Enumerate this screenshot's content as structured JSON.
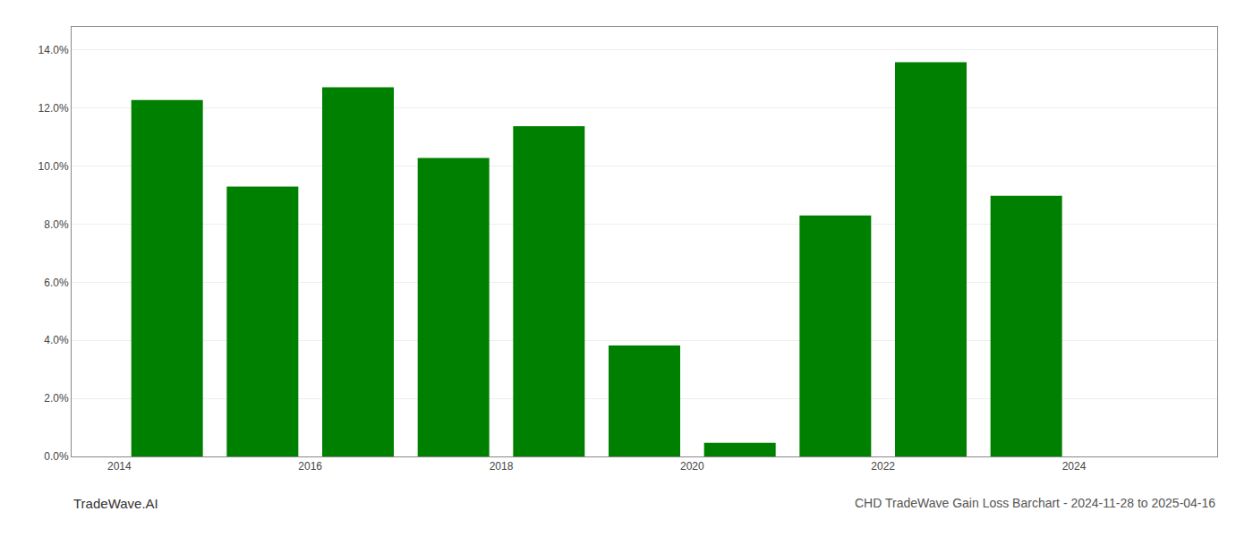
{
  "chart_data": {
    "type": "bar",
    "title": "CHD TradeWave Gain Loss Barchart - 2024-11-28 to 2025-04-16",
    "annotations": [
      "TradeWave.AI"
    ],
    "x": [
      2014,
      2015,
      2016,
      2017,
      2018,
      2019,
      2020,
      2021,
      2022,
      2023,
      2024
    ],
    "values": [
      0.1228,
      0.093,
      0.1272,
      0.1028,
      0.1138,
      0.0382,
      0.0047,
      0.083,
      0.1358,
      0.0898,
      null
    ],
    "color": "#008000",
    "xlim": [
      2013.0,
      2025.0
    ],
    "xticks": [
      {
        "value": 2013.5,
        "label": "2014"
      },
      {
        "value": 2015.5,
        "label": "2016"
      },
      {
        "value": 2017.5,
        "label": "2018"
      },
      {
        "value": 2019.5,
        "label": "2020"
      },
      {
        "value": 2021.5,
        "label": "2022"
      },
      {
        "value": 2023.5,
        "label": "2024"
      }
    ],
    "ylim": [
      0,
      0.148
    ],
    "yticks": [
      {
        "value": 0,
        "label": "0.0%"
      },
      {
        "value": 0.02,
        "label": "2.0%"
      },
      {
        "value": 0.04,
        "label": "4.0%"
      },
      {
        "value": 0.06,
        "label": "6.0%"
      },
      {
        "value": 0.08,
        "label": "8.0%"
      },
      {
        "value": 0.1,
        "label": "10.0%"
      },
      {
        "value": 0.12,
        "label": "12.0%"
      },
      {
        "value": 0.14,
        "label": "14.0%"
      }
    ],
    "grid": true
  }
}
